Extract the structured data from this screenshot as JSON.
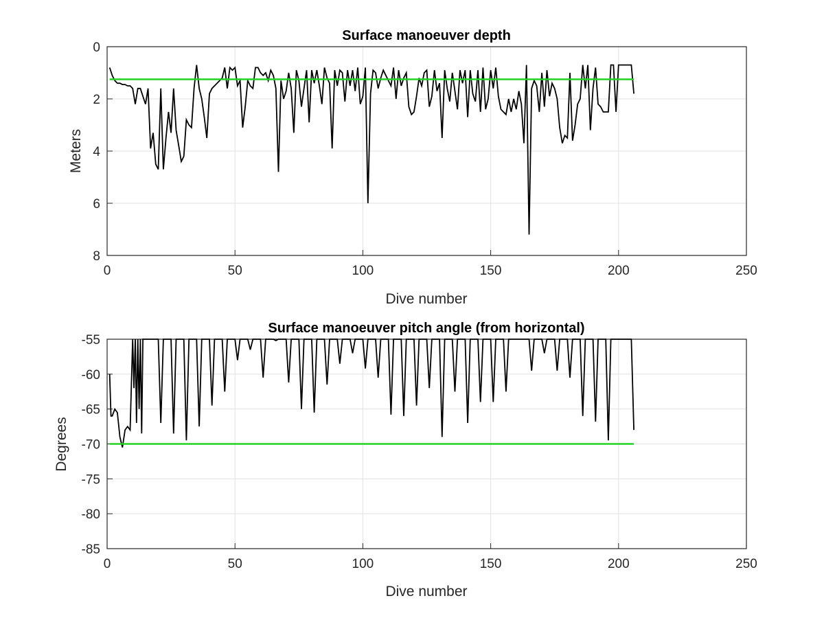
{
  "chart_data": [
    {
      "type": "line",
      "title": "Surface manoeuver depth",
      "xlabel": "Dive number",
      "ylabel": "Meters",
      "xlim": [
        0,
        250
      ],
      "ylim": [
        0,
        8
      ],
      "y_reversed": true,
      "grid": true,
      "xticks": [
        "0",
        "50",
        "100",
        "150",
        "200",
        "250"
      ],
      "yticks": [
        "0",
        "2",
        "4",
        "6",
        "8"
      ],
      "colors": {
        "data": "#000000",
        "reference": "#22d322",
        "grid": "#e1e1e1"
      },
      "series": [
        {
          "x": [
            1,
            2,
            3,
            4,
            5,
            6,
            7,
            8,
            9,
            10,
            11,
            12,
            13,
            14,
            15,
            16,
            17,
            18,
            19,
            20,
            21,
            22,
            23,
            24,
            25,
            26,
            27,
            28,
            29,
            30,
            31,
            32,
            33,
            34,
            35,
            36,
            37,
            38,
            39,
            40,
            41,
            42,
            43,
            44,
            45,
            46,
            47,
            48,
            49,
            50,
            51,
            52,
            53,
            54,
            55,
            56,
            57,
            58,
            59,
            60,
            61,
            62,
            63,
            64,
            65,
            66,
            67,
            68,
            69,
            70,
            71,
            72,
            73,
            74,
            75,
            76,
            77,
            78,
            79,
            80,
            81,
            82,
            83,
            84,
            85,
            86,
            87,
            88,
            89,
            90,
            91,
            92,
            93,
            94,
            95,
            96,
            97,
            98,
            99,
            100,
            101,
            102,
            103,
            104,
            105,
            106,
            107,
            108,
            109,
            110,
            111,
            112,
            113,
            114,
            115,
            116,
            117,
            118,
            119,
            120,
            121,
            122,
            123,
            124,
            125,
            126,
            127,
            128,
            129,
            130,
            131,
            132,
            133,
            134,
            135,
            136,
            137,
            138,
            139,
            140,
            141,
            142,
            143,
            144,
            145,
            146,
            147,
            148,
            149,
            150,
            151,
            152,
            153,
            154,
            155,
            156,
            157,
            158,
            159,
            160,
            161,
            162,
            163,
            164,
            165,
            166,
            167,
            168,
            169,
            170,
            171,
            172,
            173,
            174,
            175,
            176,
            177,
            178,
            179,
            180,
            181,
            182,
            183,
            184,
            185,
            186,
            187,
            188,
            189,
            190,
            191,
            192,
            193,
            194,
            195,
            196,
            197,
            198,
            199,
            200,
            201,
            202,
            203,
            204,
            205,
            206
          ],
          "values": [
            0.8,
            1.1,
            1.3,
            1.4,
            1.4,
            1.45,
            1.45,
            1.5,
            1.5,
            1.6,
            2.2,
            1.6,
            1.6,
            1.9,
            2.2,
            1.6,
            3.9,
            3.3,
            4.5,
            4.7,
            1.6,
            4.7,
            3.5,
            2.5,
            3.3,
            1.6,
            3.2,
            3.8,
            4.4,
            4.2,
            2.8,
            3.0,
            3.1,
            1.6,
            0.7,
            1.6,
            2.0,
            2.7,
            3.5,
            1.8,
            1.6,
            1.5,
            1.4,
            1.3,
            1.2,
            0.8,
            1.6,
            0.8,
            0.9,
            0.8,
            1.5,
            1.3,
            3.1,
            2.3,
            1.3,
            1.5,
            1.6,
            0.8,
            0.8,
            1.0,
            1.1,
            1.0,
            1.3,
            0.9,
            1.1,
            1.6,
            4.8,
            1.3,
            2.0,
            1.7,
            1.0,
            1.6,
            3.3,
            0.9,
            1.3,
            2.3,
            1.6,
            0.9,
            2.9,
            0.9,
            1.4,
            0.9,
            1.5,
            2.2,
            0.8,
            1.2,
            1.4,
            3.9,
            0.9,
            1.5,
            0.9,
            1.0,
            2.1,
            0.9,
            1.5,
            0.9,
            1.7,
            0.8,
            2.2,
            1.9,
            0.8,
            6.0,
            1.8,
            0.9,
            1.0,
            1.6,
            1.2,
            0.9,
            1.1,
            1.3,
            1.5,
            0.8,
            2.0,
            0.9,
            1.5,
            1.2,
            1.0,
            2.3,
            2.6,
            2.5,
            1.9,
            1.2,
            1.5,
            1.0,
            0.9,
            2.3,
            1.9,
            0.9,
            1.7,
            1.4,
            3.5,
            0.9,
            1.6,
            2.1,
            1.0,
            1.7,
            2.4,
            0.9,
            1.4,
            0.9,
            2.7,
            0.9,
            1.8,
            2.1,
            0.9,
            2.5,
            0.8,
            2.4,
            2.0,
            0.9,
            1.6,
            0.8,
            1.9,
            2.4,
            2.5,
            2.6,
            2.0,
            2.5,
            2.0,
            2.4,
            1.7,
            2.2,
            3.7,
            0.7,
            7.2,
            1.6,
            1.3,
            1.5,
            2.5,
            1.0,
            2.3,
            0.9,
            1.9,
            1.4,
            1.6,
            2.0,
            3.1,
            3.7,
            3.4,
            3.5,
            1.0,
            3.6,
            3.0,
            2.2,
            2.0,
            0.7,
            1.6,
            0.7,
            3.2,
            1.6,
            0.8,
            2.2,
            2.3,
            2.5,
            2.5,
            2.5,
            0.7,
            0.7,
            2.5,
            0.7,
            0.7,
            0.7,
            0.7,
            0.7,
            0.7,
            1.8
          ]
        },
        {
          "x": [
            1,
            206
          ],
          "values": [
            1.25,
            1.25
          ]
        }
      ]
    },
    {
      "type": "line",
      "title": "Surface manoeuver pitch angle (from horizontal)",
      "xlabel": "Dive number",
      "ylabel": "Degrees",
      "xlim": [
        0,
        250
      ],
      "ylim": [
        -85,
        -55
      ],
      "grid": true,
      "xticks": [
        "0",
        "50",
        "100",
        "150",
        "200",
        "250"
      ],
      "yticks": [
        "-55",
        "-60",
        "-65",
        "-70",
        "-75",
        "-80",
        "-85"
      ],
      "colors": {
        "data": "#000000",
        "reference": "#22d322",
        "grid": "#e1e1e1"
      },
      "series": [
        {
          "x": [
            1,
            1.5,
            2,
            3,
            4,
            5,
            6,
            7,
            8,
            9,
            10,
            10.5,
            11,
            11.5,
            12,
            12.5,
            13,
            13.5,
            14,
            14.5,
            15,
            15.5,
            16,
            16.5,
            17,
            18,
            20,
            21,
            22,
            25,
            26,
            27,
            30,
            31,
            32,
            35,
            36,
            37,
            40,
            41,
            42,
            45,
            46,
            47,
            50,
            51,
            52,
            55,
            56,
            57,
            60,
            61,
            62,
            65,
            66,
            67,
            70,
            71,
            72,
            75,
            76,
            77,
            80,
            81,
            82,
            85,
            86,
            87,
            90,
            91,
            92,
            95,
            96,
            97,
            100,
            101,
            102,
            105,
            106,
            107,
            110,
            111,
            112,
            115,
            116,
            117,
            120,
            121,
            122,
            125,
            126,
            127,
            130,
            131,
            132,
            135,
            136,
            137,
            140,
            141,
            142,
            145,
            146,
            147,
            150,
            151,
            152,
            155,
            156,
            157,
            160,
            161,
            162,
            165,
            166,
            167,
            170,
            171,
            172,
            175,
            176,
            177,
            180,
            181,
            182,
            185,
            186,
            187,
            190,
            191,
            192,
            195,
            196,
            197,
            199,
            200,
            205,
            206
          ],
          "values": [
            -60,
            -66,
            -66,
            -65,
            -65.5,
            -69,
            -70.5,
            -68,
            -67.5,
            -68,
            -55,
            -62,
            -55,
            -67,
            -55,
            -65,
            -55,
            -68.5,
            -55,
            -55,
            -55,
            -55,
            -55,
            -55,
            -55,
            -55,
            -55,
            -67,
            -55,
            -55,
            -68.5,
            -55,
            -55,
            -69.5,
            -55,
            -55,
            -67.5,
            -55,
            -55,
            -64.5,
            -55,
            -55,
            -62.5,
            -55,
            -55,
            -58,
            -55,
            -55,
            -56.5,
            -55,
            -55,
            -60.5,
            -55,
            -55,
            -55.2,
            -55,
            -55,
            -61.2,
            -55,
            -55,
            -65,
            -55,
            -55,
            -65.5,
            -55,
            -55,
            -61.5,
            -55,
            -55,
            -58.5,
            -55,
            -55,
            -57,
            -55,
            -55,
            -59.2,
            -55,
            -55,
            -60.5,
            -55,
            -55,
            -65.8,
            -55,
            -55,
            -66,
            -55,
            -55,
            -64.5,
            -55,
            -55,
            -62,
            -55,
            -55,
            -69,
            -55,
            -55,
            -62.5,
            -55,
            -55,
            -67,
            -55,
            -55,
            -64,
            -55,
            -55,
            -64,
            -55,
            -55,
            -62.5,
            -55,
            -55,
            -55,
            -55,
            -55,
            -59.5,
            -55,
            -55,
            -57,
            -55,
            -55,
            -59.5,
            -55,
            -55,
            -60.5,
            -55,
            -55,
            -66,
            -55,
            -55,
            -66.8,
            -55,
            -55,
            -69.5,
            -55,
            -55,
            -55,
            -55,
            -68
          ]
        },
        {
          "x": [
            1,
            206
          ],
          "values": [
            -70,
            -70
          ]
        }
      ]
    }
  ]
}
